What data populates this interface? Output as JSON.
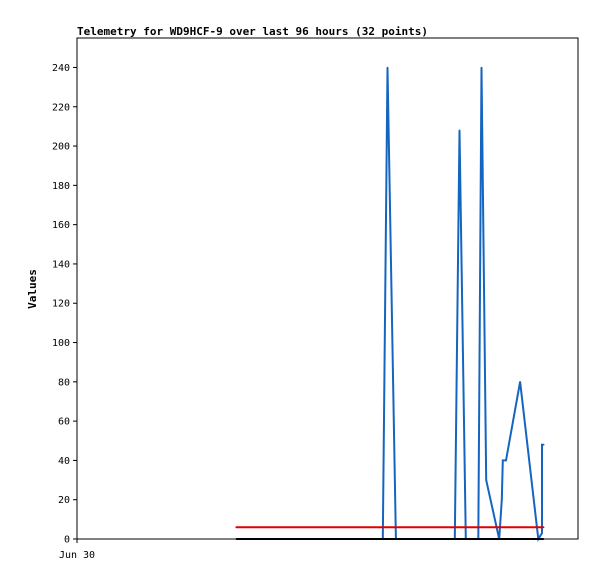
{
  "chart_data": {
    "type": "line",
    "title": "Telemetry for WD9HCF-9 over last 96 hours (32 points)",
    "xlabel": "",
    "ylabel": "Values",
    "x_tick_labels": [
      "Jun 30"
    ],
    "y_ticks": [
      0,
      20,
      40,
      60,
      80,
      100,
      120,
      140,
      160,
      180,
      200,
      220,
      240
    ],
    "xlim": [
      0,
      96
    ],
    "ylim": [
      0,
      255
    ],
    "grid": false,
    "legend": "none",
    "series": [
      {
        "color": "#1565c0",
        "x": [
          58.6,
          58.6,
          59.5,
          61.1,
          61.1,
          61.1,
          72.4,
          72.4,
          73.3,
          74.5,
          76.2,
          76.2,
          76.9,
          76.9,
          76.9,
          77.5,
          78.4,
          78.4,
          80.9,
          81.4,
          81.4,
          81.6,
          82.2,
          84.9,
          88.4,
          88.4,
          89.1,
          89.1,
          89.1,
          89.1,
          89.4,
          89.4
        ],
        "y": [
          0,
          0,
          240,
          0,
          0,
          0,
          0,
          0,
          208,
          0,
          0,
          0,
          0,
          0,
          0,
          240,
          30,
          30,
          0,
          20,
          20,
          40,
          40,
          80,
          0,
          0,
          3,
          3,
          48,
          48,
          48,
          48
        ]
      },
      {
        "color": "#e00000",
        "x": [
          30.5,
          89.4
        ],
        "y": [
          6,
          6
        ]
      },
      {
        "color": "#000000",
        "x": [
          30.5,
          89.4
        ],
        "y": [
          0,
          0
        ]
      }
    ]
  }
}
